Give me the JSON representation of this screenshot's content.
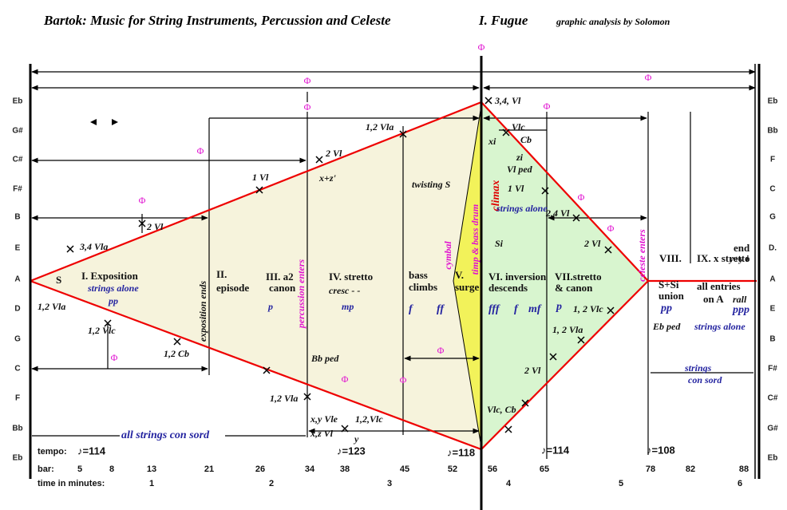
{
  "title": "Bartok: Music for String Instruments, Percussion and Celeste",
  "movement": "I. Fugue",
  "credit": "graphic analysis by Solomon",
  "left_notes": [
    "Eb",
    "G#",
    "C#",
    "F#",
    "B",
    "E",
    "A",
    "D",
    "G",
    "C",
    "F",
    "Bb",
    "Eb"
  ],
  "right_notes": [
    "Eb",
    "Bb",
    "F",
    "C",
    "G",
    "D.",
    "A",
    "E",
    "B",
    "F#",
    "C#",
    "G#",
    "Eb"
  ],
  "annotations": [
    "S",
    "I. Exposition",
    "strings alone",
    "pp",
    "1,2 Vla",
    "3,4 Vla",
    "2 Vl",
    "1,2 Vlc",
    "1,2 Cb",
    "exposition ends",
    "II.",
    "episode",
    "III. a2",
    "canon",
    "p",
    "percussion enters",
    "1 Vl",
    "2 Vl",
    "x+z'",
    "IV. stretto",
    "cresc - -",
    "mp",
    "1,2 Vla",
    "twisting S",
    "Bb ped",
    "1,2 Vla",
    "x,y Vle",
    "x,z Vl",
    "1,2,Vlc",
    "y",
    "bass",
    "climbs",
    "f",
    "ff",
    "cymbal",
    "V.",
    "surge",
    "timp & bass drum",
    "climax",
    "3,4, Vl",
    "Vlc",
    "Cb",
    "xi",
    "zi",
    "Vl ped",
    "1 Vl",
    "strings alone",
    "2,4 Vl",
    "Si",
    "2 Vl",
    "VI. inversion",
    "descends",
    "fff",
    "f",
    "mf",
    "p",
    "VII.stretto",
    "& canon",
    "1, 2 Vlc",
    "1, 2 Vla",
    "2 Vl",
    "Vlc, Cb",
    "celeste enters",
    "VIII.",
    "S+Si",
    "union",
    "pp",
    "Eb ped",
    "IX. x stretto",
    "end",
    "y+y i",
    "all entries",
    "on A",
    "rall",
    "ppp",
    "strings alone",
    "strings",
    "con sord",
    "all strings con sord"
  ],
  "golden_sections": [
    "Φ",
    "Φ",
    "Φ",
    "Φ",
    "Φ",
    "Φ",
    "Φ",
    "Φ",
    "Φ",
    "Φ",
    "Φ",
    "Φ",
    "Φ"
  ],
  "footer": {
    "tempo_label": "tempo:",
    "tempos": [
      "♪=114",
      "♪=123",
      "♪=118",
      "♪=114",
      "♪=108"
    ],
    "bar_label": "bar:",
    "bars": [
      "5",
      "8",
      "13",
      "21",
      "26",
      "34",
      "38",
      "45",
      "52",
      "56",
      "65",
      "78",
      "82",
      "88"
    ],
    "time_label": "time in minutes:",
    "minutes": [
      "1",
      "2",
      "3",
      "4",
      "5",
      "6"
    ]
  }
}
